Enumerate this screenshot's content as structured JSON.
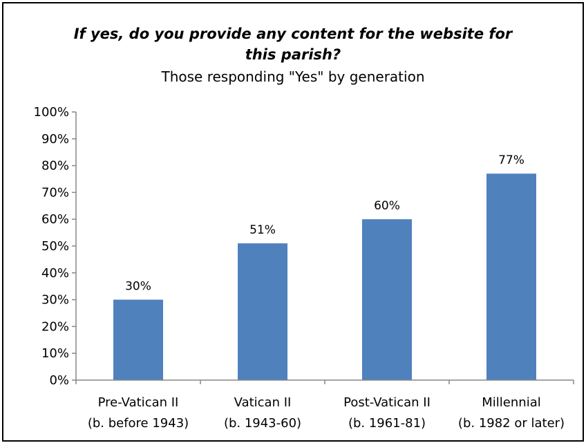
{
  "chart_data": {
    "type": "bar",
    "title_line1": "If yes, do you provide any content for the website for",
    "title_line2": "this parish?",
    "subtitle": "Those responding \"Yes\" by generation",
    "categories": [
      [
        "Pre-Vatican II",
        "(b. before 1943)"
      ],
      [
        "Vatican II",
        "(b. 1943-60)"
      ],
      [
        "Post-Vatican II",
        "(b. 1961-81)"
      ],
      [
        "Millennial",
        "(b. 1982 or later)"
      ]
    ],
    "values": [
      30,
      51,
      60,
      77
    ],
    "data_labels": [
      "30%",
      "51%",
      "60%",
      "77%"
    ],
    "y_ticks": [
      "0%",
      "10%",
      "20%",
      "30%",
      "40%",
      "50%",
      "60%",
      "70%",
      "80%",
      "90%",
      "100%"
    ],
    "ylim": [
      0,
      100
    ],
    "bar_color": "#4F81BD",
    "grid": false,
    "legend": "none"
  }
}
